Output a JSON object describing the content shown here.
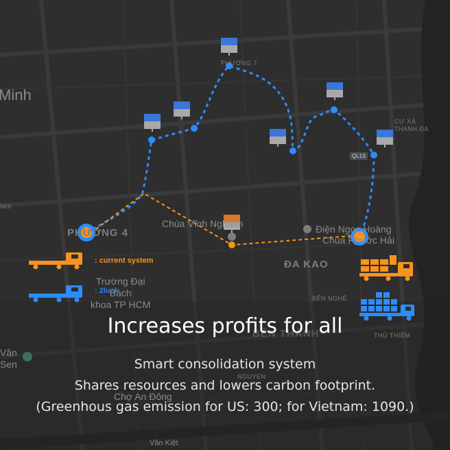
{
  "map": {
    "labels": {
      "minh": "Minh",
      "phuong4": "PHƯỜNG 4",
      "phuong7": "PHƯỜNG 7",
      "chua_vinh_nghiem": "Chùa Vĩnh Nghiêm",
      "dien_ngoc_hoang": "Điện Ngọc Hoàng",
      "chua_phuoc_hai": "Chùa Phước Hải",
      "da_kao": "ĐA KAO",
      "truong_dai_hoc": "Trường Đại\nBách\nkhoa TP HCM",
      "ben_nghe": "BẾN NGHÉ",
      "thu_thiem": "THỦ THIÊM",
      "cu_xa": "CƯ XÁ\nTHANH ĐA",
      "ql13": "QL13",
      "nhi": "NHI",
      "van_sen": "Văn\nSen",
      "ben_thanh": "BẾN THÀNH",
      "nguyen": "NGUYEN",
      "cho_an_dong": "Chợ An Đông",
      "van_kiet": "Văn Kiệt"
    }
  },
  "legend": {
    "current": {
      "label": ": current system",
      "color": "#f7931e"
    },
    "luck": {
      "label": ": 2luck",
      "color": "#2f80ed"
    }
  },
  "headline": {
    "title": "Increases profits for all",
    "line1": "Smart consolidation system",
    "line2": "Shares resources and lowers carbon footprint.",
    "line3": "(Greenhous gas emission for US: 300; for Vietnam: 1090.)"
  },
  "colors": {
    "blue_route": "#2d8cff",
    "orange_route": "#f7931e",
    "pin_blue": "#3a78d8",
    "pin_gray": "#a9a9a9"
  }
}
